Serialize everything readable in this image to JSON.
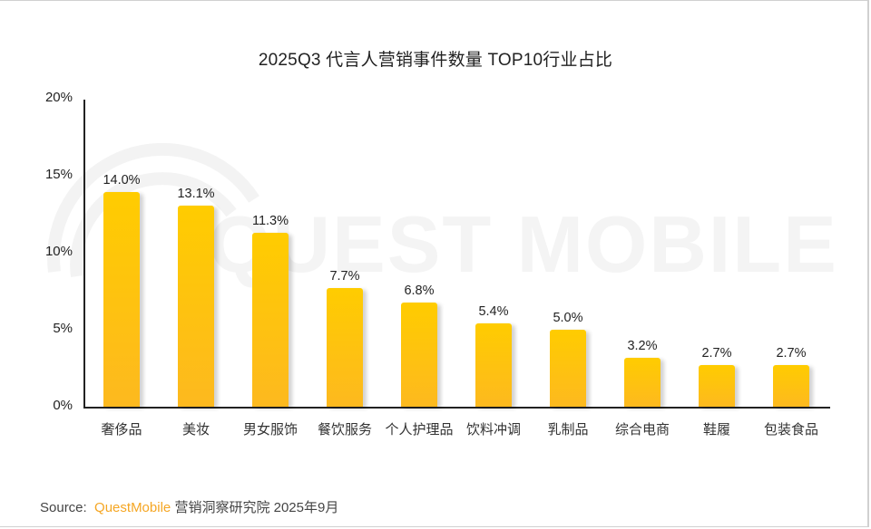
{
  "title": "2025Q3 代言人营销事件数量 TOP10行业占比",
  "watermark": "QUEST MOBILE",
  "source": {
    "prefix": "Source:",
    "brand": "QuestMobile",
    "suffix": "营销洞察研究院 2025年9月",
    "brand_color": "#f5a623"
  },
  "chart_data": {
    "type": "bar",
    "title": "2025Q3 代言人营销事件数量 TOP10行业占比",
    "xlabel": "",
    "ylabel": "",
    "ylim": [
      0,
      20
    ],
    "yticks": [
      "0%",
      "5%",
      "10%",
      "15%",
      "20%"
    ],
    "grid": false,
    "legend": null,
    "categories": [
      "奢侈品",
      "美妆",
      "男女服饰",
      "餐饮服务",
      "个人护理品",
      "饮料冲调",
      "乳制品",
      "综合电商",
      "鞋履",
      "包装食品"
    ],
    "values": [
      14.0,
      13.1,
      11.3,
      7.7,
      6.8,
      5.4,
      5.0,
      3.2,
      2.7,
      2.7
    ],
    "value_labels": [
      "14.0%",
      "13.1%",
      "11.3%",
      "7.7%",
      "6.8%",
      "5.4%",
      "5.0%",
      "3.2%",
      "2.7%",
      "2.7%"
    ],
    "bar_color_top": "#ffcc00",
    "bar_color_bottom": "#fdb91f"
  }
}
